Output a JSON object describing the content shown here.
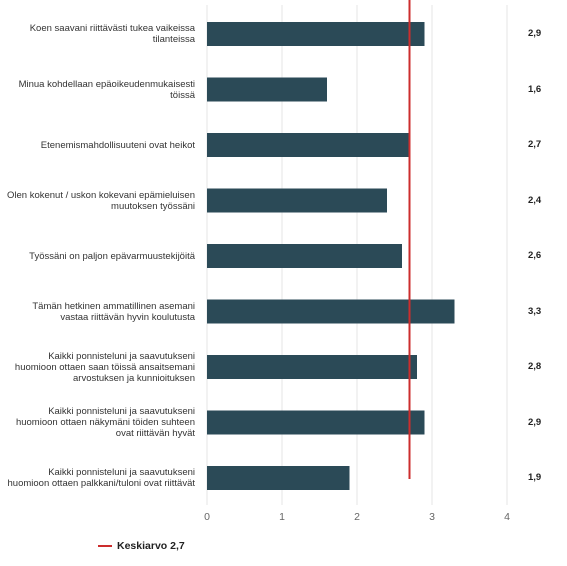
{
  "chart_data": {
    "type": "bar",
    "orientation": "horizontal",
    "categories": [
      "Koen saavani riittävästi tukea vaikeissa tilanteissa",
      "Minua kohdellaan epäoikeudenmukaisesti töissä",
      "Etenemismahdollisuuteni ovat heikot",
      "Olen kokenut / uskon kokevani epämieluisen muutoksen työssäni",
      "Työssäni on paljon epävarmuustekijöitä",
      "Tämän hetkinen ammatillinen asemani vastaa riittävän hyvin koulutusta",
      "Kaikki ponnisteluni ja saavutukseni huomioon ottaen saan töissä ansaitsemani arvostuksen ja kunnioituksen",
      "Kaikki ponnisteluni ja saavutukseni huomioon ottaen näkymäni töiden suhteen ovat riittävän hyvät",
      "Kaikki ponnisteluni ja saavutukseni huomioon ottaen palkkani/tuloni ovat riittävät"
    ],
    "values": [
      2.9,
      1.6,
      2.7,
      2.4,
      2.6,
      3.3,
      2.8,
      2.9,
      1.9
    ],
    "value_labels": [
      "2,9",
      "1,6",
      "2,7",
      "2,4",
      "2,6",
      "3,3",
      "2,8",
      "2,9",
      "1,9"
    ],
    "xlim": [
      0,
      4
    ],
    "x_ticks": [
      "0",
      "1",
      "2",
      "3",
      "4"
    ],
    "grid": "vertical",
    "reference_line": {
      "value": 2.7,
      "label": "Keskiarvo 2,7"
    },
    "legend_position": "bottom-left",
    "colors": {
      "bar": "#2b4a57",
      "reference": "#cc2d2d",
      "grid": "#e6e6e6"
    }
  }
}
